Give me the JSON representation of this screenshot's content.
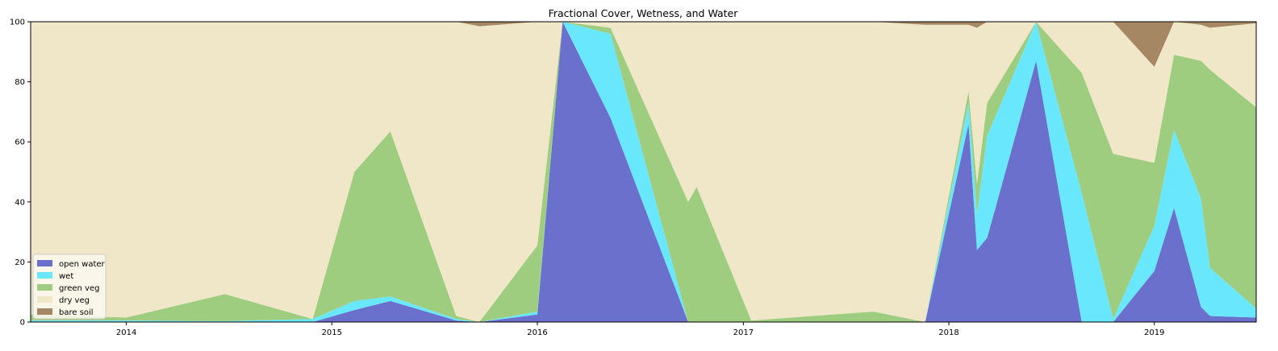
{
  "chart_data": {
    "type": "area",
    "title": "Fractional Cover, Wetness, and Water",
    "xlabel": "",
    "ylabel": "",
    "x_ticks": [
      "2014",
      "2015",
      "2016",
      "2017",
      "2018",
      "2019"
    ],
    "y_ticks": [
      "0",
      "20",
      "40",
      "60",
      "80",
      "100"
    ],
    "ylim": [
      0,
      100
    ],
    "xlim": [
      "2013-07-15",
      "2019-07-01"
    ],
    "stacked": true,
    "grid": false,
    "legend_position": "bottom-left",
    "series": [
      {
        "name": "open water",
        "color": "#6a70cb",
        "points": [
          [
            "2013-07-15",
            0
          ],
          [
            "2014-01-01",
            0
          ],
          [
            "2014-06-25",
            0
          ],
          [
            "2014-11-28",
            0
          ],
          [
            "2015-02-10",
            4
          ],
          [
            "2015-04-15",
            7
          ],
          [
            "2015-08-10",
            0.5
          ],
          [
            "2015-09-20",
            0
          ],
          [
            "2016-01-01",
            2.5
          ],
          [
            "2016-02-15",
            100
          ],
          [
            "2016-05-10",
            68
          ],
          [
            "2016-09-25",
            0
          ],
          [
            "2017-01-15",
            0
          ],
          [
            "2017-08-20",
            0
          ],
          [
            "2017-11-20",
            0
          ],
          [
            "2018-02-05",
            66
          ],
          [
            "2018-02-20",
            24
          ],
          [
            "2018-03-10",
            28
          ],
          [
            "2018-06-05",
            87
          ],
          [
            "2018-08-25",
            0
          ],
          [
            "2018-10-20",
            0
          ],
          [
            "2019-01-01",
            17
          ],
          [
            "2019-02-05",
            38
          ],
          [
            "2019-03-25",
            5
          ],
          [
            "2019-04-10",
            2
          ],
          [
            "2019-07-01",
            1.5
          ]
        ]
      },
      {
        "name": "wet",
        "color": "#69e7fc",
        "points": [
          [
            "2013-07-15",
            0.5
          ],
          [
            "2014-01-01",
            0.5
          ],
          [
            "2014-06-25",
            0.3
          ],
          [
            "2014-11-28",
            1
          ],
          [
            "2015-02-10",
            3
          ],
          [
            "2015-04-15",
            1.5
          ],
          [
            "2015-08-10",
            0.5
          ],
          [
            "2015-09-20",
            0
          ],
          [
            "2016-01-01",
            1
          ],
          [
            "2016-02-15",
            0
          ],
          [
            "2016-05-10",
            28
          ],
          [
            "2016-09-25",
            0
          ],
          [
            "2017-01-15",
            0
          ],
          [
            "2017-08-20",
            0
          ],
          [
            "2017-11-20",
            0
          ],
          [
            "2018-02-05",
            7
          ],
          [
            "2018-02-20",
            12
          ],
          [
            "2018-03-10",
            34
          ],
          [
            "2018-06-05",
            13
          ],
          [
            "2018-08-25",
            43
          ],
          [
            "2018-10-20",
            1
          ],
          [
            "2019-01-01",
            15
          ],
          [
            "2019-02-05",
            26
          ],
          [
            "2019-03-25",
            36
          ],
          [
            "2019-04-10",
            16
          ],
          [
            "2019-07-01",
            3
          ]
        ]
      },
      {
        "name": "green veg",
        "color": "#9ecd80",
        "points": [
          [
            "2013-07-15",
            2
          ],
          [
            "2014-01-01",
            1
          ],
          [
            "2014-06-25",
            9
          ],
          [
            "2014-11-28",
            0
          ],
          [
            "2015-02-10",
            43
          ],
          [
            "2015-04-15",
            55
          ],
          [
            "2015-08-10",
            1
          ],
          [
            "2015-09-20",
            0
          ],
          [
            "2016-01-01",
            22
          ],
          [
            "2016-02-15",
            0
          ],
          [
            "2016-05-10",
            2
          ],
          [
            "2016-09-25",
            40
          ],
          [
            "2016-10-10",
            45
          ],
          [
            "2017-01-15",
            0.5
          ],
          [
            "2017-08-20",
            3.5
          ],
          [
            "2017-11-20",
            0
          ],
          [
            "2018-02-05",
            4
          ],
          [
            "2018-02-20",
            10
          ],
          [
            "2018-03-10",
            11
          ],
          [
            "2018-06-05",
            0
          ],
          [
            "2018-08-25",
            40
          ],
          [
            "2018-10-20",
            55
          ],
          [
            "2019-01-01",
            21
          ],
          [
            "2019-02-05",
            25
          ],
          [
            "2019-03-25",
            46
          ],
          [
            "2019-04-10",
            66
          ],
          [
            "2019-07-01",
            67
          ]
        ]
      },
      {
        "name": "dry veg",
        "color": "#f0e6c8",
        "points": [
          [
            "2013-07-15",
            97.5
          ],
          [
            "2014-01-01",
            98.5
          ],
          [
            "2014-06-25",
            90.7
          ],
          [
            "2014-11-28",
            99
          ],
          [
            "2015-02-10",
            50
          ],
          [
            "2015-04-15",
            36.5
          ],
          [
            "2015-08-10",
            98
          ],
          [
            "2015-09-20",
            98.5
          ],
          [
            "2016-01-01",
            74.5
          ],
          [
            "2016-02-15",
            0
          ],
          [
            "2016-05-10",
            2
          ],
          [
            "2016-09-25",
            60
          ],
          [
            "2017-01-15",
            99.5
          ],
          [
            "2017-08-20",
            96.5
          ],
          [
            "2017-11-20",
            99
          ],
          [
            "2018-02-05",
            22
          ],
          [
            "2018-02-20",
            52
          ],
          [
            "2018-03-10",
            27
          ],
          [
            "2018-06-05",
            0
          ],
          [
            "2018-08-25",
            17
          ],
          [
            "2018-10-20",
            44
          ],
          [
            "2019-01-01",
            32
          ],
          [
            "2019-02-05",
            11
          ],
          [
            "2019-03-25",
            12
          ],
          [
            "2019-04-10",
            14
          ],
          [
            "2019-07-01",
            28
          ]
        ]
      },
      {
        "name": "bare soil",
        "color": "#a68764",
        "points": [
          [
            "2013-07-15",
            0
          ],
          [
            "2013-08-20",
            1.5
          ],
          [
            "2013-10-15",
            0.5
          ],
          [
            "2013-12-01",
            1
          ],
          [
            "2014-01-01",
            0
          ],
          [
            "2014-06-25",
            0
          ],
          [
            "2014-11-28",
            0
          ],
          [
            "2015-02-10",
            0
          ],
          [
            "2015-04-15",
            0
          ],
          [
            "2015-08-10",
            0
          ],
          [
            "2015-09-20",
            1.5
          ],
          [
            "2016-01-01",
            0
          ],
          [
            "2016-02-15",
            0
          ],
          [
            "2016-05-10",
            0
          ],
          [
            "2016-09-25",
            0
          ],
          [
            "2017-01-15",
            0
          ],
          [
            "2017-08-20",
            0
          ],
          [
            "2017-11-20",
            1
          ],
          [
            "2018-02-05",
            1
          ],
          [
            "2018-02-20",
            2
          ],
          [
            "2018-03-10",
            0
          ],
          [
            "2018-06-05",
            0
          ],
          [
            "2018-08-25",
            0.5
          ],
          [
            "2018-10-20",
            0
          ],
          [
            "2019-01-01",
            15
          ],
          [
            "2019-02-05",
            0
          ],
          [
            "2019-03-25",
            1
          ],
          [
            "2019-04-10",
            2
          ],
          [
            "2019-07-01",
            0.5
          ]
        ]
      }
    ]
  }
}
